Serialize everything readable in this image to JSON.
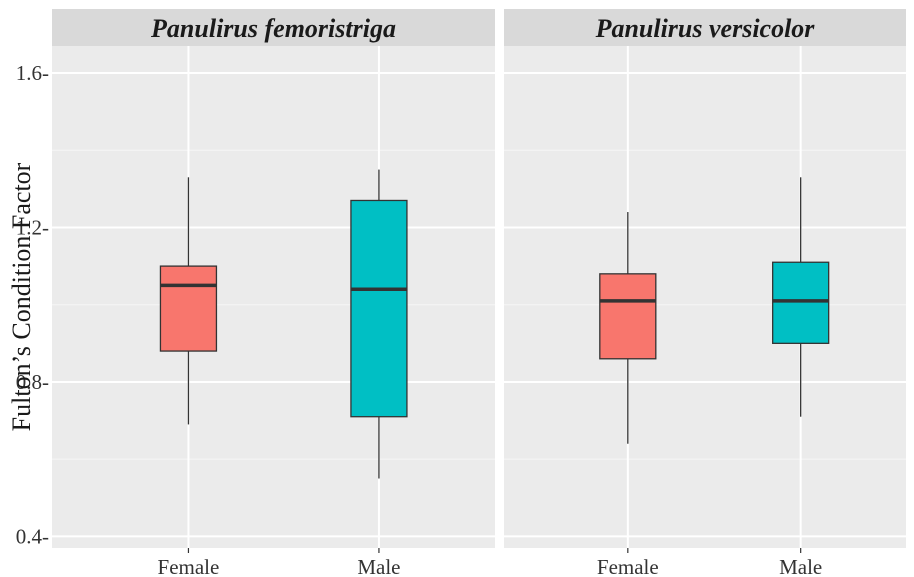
{
  "chart_data": {
    "type": "boxplot",
    "ylabel": "Fulton’s Condition Factor",
    "xlabel": "",
    "ylim": [
      0.37,
      1.67
    ],
    "yticks": [
      0.4,
      0.8,
      1.2,
      1.6
    ],
    "ytick_labels": [
      "0.4-",
      "0.8-",
      "1.2-",
      "1.6-"
    ],
    "categories": [
      "Female",
      "Male"
    ],
    "grid": true,
    "legend": "none",
    "colors": {
      "Female": "#F8766D",
      "Male": "#00BFC4"
    },
    "panels": [
      {
        "title": "Panulirus femoristriga",
        "boxes": [
          {
            "category": "Female",
            "min": 0.69,
            "q1": 0.88,
            "median": 1.05,
            "q3": 1.1,
            "max": 1.33
          },
          {
            "category": "Male",
            "min": 0.55,
            "q1": 0.71,
            "median": 1.04,
            "q3": 1.27,
            "max": 1.35
          }
        ]
      },
      {
        "title": "Panulirus versicolor",
        "boxes": [
          {
            "category": "Female",
            "min": 0.64,
            "q1": 0.86,
            "median": 1.01,
            "q3": 1.08,
            "max": 1.24
          },
          {
            "category": "Male",
            "min": 0.71,
            "q1": 0.9,
            "median": 1.01,
            "q3": 1.11,
            "max": 1.33
          }
        ]
      }
    ]
  }
}
